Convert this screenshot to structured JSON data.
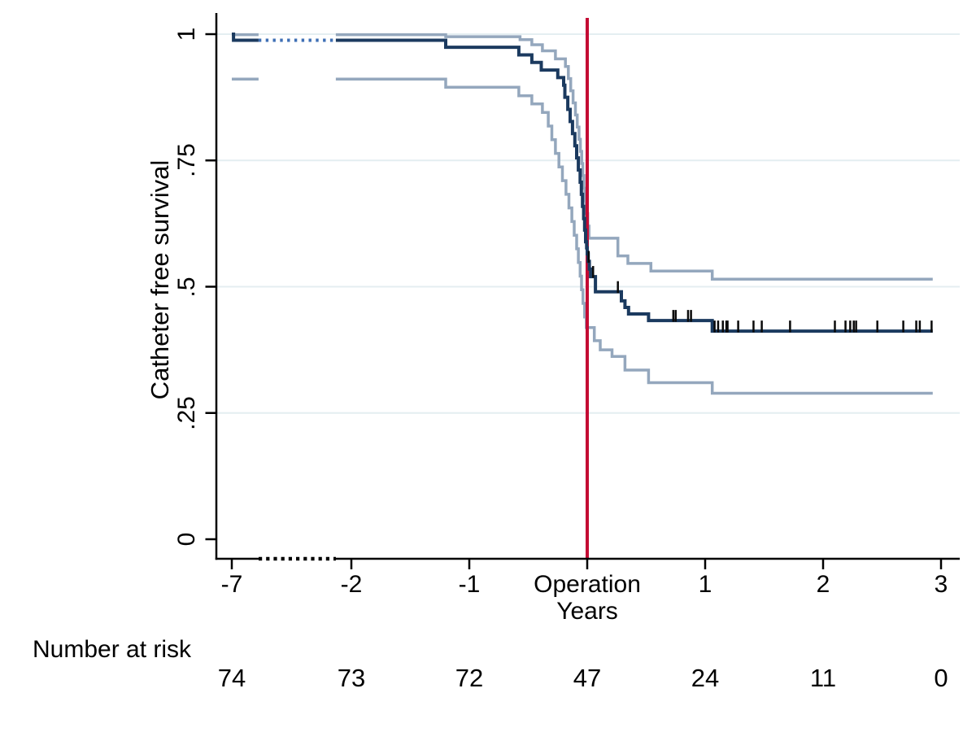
{
  "figure": {
    "background": "#ffffff",
    "title": ""
  },
  "chart_data": {
    "type": "line",
    "subtype": "kaplan-meier-step-with-confidence-bands",
    "title": "",
    "xlabel": "Years",
    "ylabel": "Catheter free survival",
    "ylim": [
      0,
      1
    ],
    "grid": "horizontal gridlines at 0.25, 0.5, 0.75, 1",
    "legend": "none",
    "x_ticks": [
      {
        "t": -7,
        "label": "-7"
      },
      {
        "t": -2,
        "label": "-2"
      },
      {
        "t": -1,
        "label": "-1"
      },
      {
        "t": 0,
        "label": "Operation"
      },
      {
        "t": 1,
        "label": "1"
      },
      {
        "t": 2,
        "label": "2"
      },
      {
        "t": 3,
        "label": "3"
      }
    ],
    "y_ticks": [
      {
        "v": 0,
        "label": "0"
      },
      {
        "v": 0.25,
        "label": ".25"
      },
      {
        "v": 0.5,
        "label": ".5"
      },
      {
        "v": 0.75,
        "label": ".75"
      },
      {
        "v": 1,
        "label": "1"
      }
    ],
    "axis_break": {
      "between": [
        -7,
        -2
      ],
      "note": "compressed x-scale shown as dotted segment on axis and on survival curve; confidence bands have a gap"
    },
    "reference_line": {
      "t": 0,
      "label": "Operation",
      "color": "#c40a34"
    },
    "colors": {
      "estimate": "#1b3a5f",
      "estimate_dotted": "#3e6fb5",
      "confidence": "#94a7bd",
      "reference": "#c40a34",
      "gridline": "#e4eef1",
      "axis": "#000000",
      "censor_mark": "#0a0a0a"
    },
    "series": [
      {
        "name": "ci-upper",
        "role": "confidence-upper",
        "color": "#94a7bd",
        "width": 3.5,
        "segments": [
          {
            "style": "solid",
            "points": [
              [
                -7,
                0.999
              ],
              [
                -5.88,
                0.999
              ]
            ]
          },
          {
            "style": "solid",
            "points": [
              [
                -2.65,
                0.999
              ],
              [
                -1.2,
                0.995
              ],
              [
                -0.57,
                0.989
              ],
              [
                -0.47,
                0.979
              ],
              [
                -0.38,
                0.967
              ],
              [
                -0.27,
                0.951
              ],
              [
                -0.185,
                0.936
              ],
              [
                -0.16,
                0.912
              ],
              [
                -0.14,
                0.888
              ],
              [
                -0.12,
                0.864
              ],
              [
                -0.1,
                0.84
              ],
              [
                -0.085,
                0.816
              ],
              [
                -0.07,
                0.792
              ],
              [
                -0.058,
                0.768
              ],
              [
                -0.047,
                0.744
              ],
              [
                -0.037,
                0.72
              ],
              [
                -0.028,
                0.695
              ],
              [
                -0.02,
                0.67
              ],
              [
                -0.012,
                0.645
              ],
              [
                0.005,
                0.62
              ],
              [
                0.015,
                0.596
              ],
              [
                0.26,
                0.561
              ],
              [
                0.345,
                0.546
              ],
              [
                0.54,
                0.531
              ],
              [
                1.06,
                0.515
              ],
              [
                2.93,
                0.515
              ]
            ]
          }
        ]
      },
      {
        "name": "ci-lower",
        "role": "confidence-lower",
        "color": "#94a7bd",
        "width": 3.5,
        "segments": [
          {
            "style": "solid",
            "points": [
              [
                -7,
                0.911
              ],
              [
                -5.88,
                0.911
              ]
            ]
          },
          {
            "style": "solid",
            "points": [
              [
                -2.65,
                0.911
              ],
              [
                -1.2,
                0.895
              ],
              [
                -0.58,
                0.878
              ],
              [
                -0.47,
                0.862
              ],
              [
                -0.38,
                0.845
              ],
              [
                -0.33,
                0.818
              ],
              [
                -0.3,
                0.791
              ],
              [
                -0.27,
                0.764
              ],
              [
                -0.24,
                0.737
              ],
              [
                -0.21,
                0.71
              ],
              [
                -0.18,
                0.683
              ],
              [
                -0.155,
                0.656
              ],
              [
                -0.13,
                0.629
              ],
              [
                -0.11,
                0.602
              ],
              [
                -0.09,
                0.575
              ],
              [
                -0.075,
                0.548
              ],
              [
                -0.06,
                0.521
              ],
              [
                -0.048,
                0.494
              ],
              [
                -0.036,
                0.467
              ],
              [
                -0.022,
                0.44
              ],
              [
                -0.008,
                0.419
              ],
              [
                0.06,
                0.393
              ],
              [
                0.11,
                0.375
              ],
              [
                0.21,
                0.362
              ],
              [
                0.32,
                0.335
              ],
              [
                0.52,
                0.31
              ],
              [
                1.06,
                0.289
              ],
              [
                2.93,
                0.289
              ]
            ]
          }
        ]
      },
      {
        "name": "km-estimate",
        "role": "estimate",
        "color": "#1b3a5f",
        "width": 4,
        "segments": [
          {
            "style": "solid",
            "points": [
              [
                -7,
                1.0
              ],
              [
                -6.93,
                0.988
              ],
              [
                -5.88,
                0.988
              ]
            ]
          },
          {
            "style": "dotted",
            "color": "#3e6fb5",
            "points": [
              [
                -5.88,
                0.988
              ],
              [
                -2.65,
                0.988
              ]
            ]
          },
          {
            "style": "solid",
            "points": [
              [
                -2.65,
                0.988
              ],
              [
                -1.2,
                0.974
              ],
              [
                -0.58,
                0.959
              ],
              [
                -0.47,
                0.944
              ],
              [
                -0.39,
                0.929
              ],
              [
                -0.25,
                0.914
              ],
              [
                -0.2,
                0.899
              ],
              [
                -0.19,
                0.875
              ],
              [
                -0.165,
                0.851
              ],
              [
                -0.145,
                0.827
              ],
              [
                -0.125,
                0.803
              ],
              [
                -0.105,
                0.779
              ],
              [
                -0.09,
                0.755
              ],
              [
                -0.075,
                0.731
              ],
              [
                -0.06,
                0.707
              ],
              [
                -0.05,
                0.683
              ],
              [
                -0.04,
                0.659
              ],
              [
                -0.03,
                0.635
              ],
              [
                -0.022,
                0.612
              ],
              [
                -0.014,
                0.589
              ],
              [
                -0.005,
                0.577
              ],
              [
                0,
                0.565
              ],
              [
                0.008,
                0.55
              ],
              [
                0.018,
                0.535
              ],
              [
                0.028,
                0.52
              ],
              [
                0.07,
                0.49
              ],
              [
                0.29,
                0.472
              ],
              [
                0.32,
                0.459
              ],
              [
                0.35,
                0.446
              ],
              [
                0.52,
                0.433
              ],
              [
                1.06,
                0.412
              ],
              [
                2.93,
                0.412
              ]
            ]
          }
        ]
      }
    ],
    "censor_marks": [
      [
        0.012,
        0.55
      ],
      [
        0.05,
        0.52
      ],
      [
        0.26,
        0.49
      ],
      [
        0.73,
        0.433
      ],
      [
        0.75,
        0.433
      ],
      [
        0.855,
        0.433
      ],
      [
        0.88,
        0.433
      ],
      [
        1.08,
        0.412
      ],
      [
        1.11,
        0.412
      ],
      [
        1.15,
        0.412
      ],
      [
        1.18,
        0.412
      ],
      [
        1.19,
        0.412
      ],
      [
        1.28,
        0.412
      ],
      [
        1.41,
        0.412
      ],
      [
        1.48,
        0.412
      ],
      [
        1.72,
        0.412
      ],
      [
        2.1,
        0.412
      ],
      [
        2.19,
        0.412
      ],
      [
        2.23,
        0.412
      ],
      [
        2.26,
        0.412
      ],
      [
        2.28,
        0.412
      ],
      [
        2.46,
        0.412
      ],
      [
        2.68,
        0.412
      ],
      [
        2.79,
        0.412
      ],
      [
        2.82,
        0.412
      ],
      [
        2.92,
        0.412
      ]
    ],
    "number_at_risk": {
      "label": "Number at risk",
      "values": [
        {
          "t": -7,
          "n": "74"
        },
        {
          "t": -2,
          "n": "73"
        },
        {
          "t": -1,
          "n": "72"
        },
        {
          "t": 0,
          "n": "47"
        },
        {
          "t": 1,
          "n": "24"
        },
        {
          "t": 2,
          "n": "11"
        },
        {
          "t": 3,
          "n": "0"
        }
      ]
    }
  }
}
